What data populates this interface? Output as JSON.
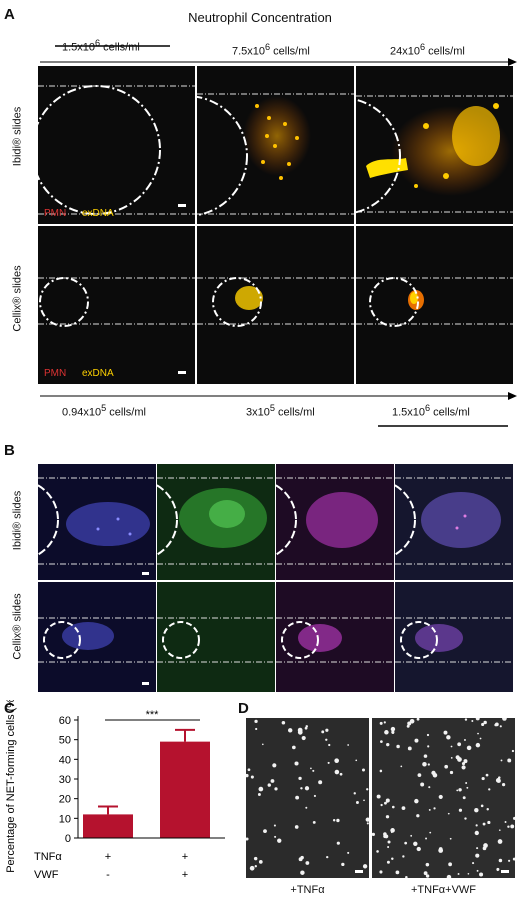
{
  "panelA": {
    "letter": "A",
    "title": "Neutrophil Concentration",
    "top_concs": [
      "1.5x10<sup>6</sup> cells/ml",
      "7.5x10<sup>6</sup> cells/ml",
      "24x10<sup>6</sup> cells/ml"
    ],
    "bottom_concs": [
      "0.94x10<sup>5</sup> cells/ml",
      "3x10<sup>5</sup> cells/ml",
      "1.5x10<sup>6</sup> cells/ml"
    ],
    "row1_label": "Ibidi® slides",
    "row2_label": "Cellix® slides",
    "legend_pmn": "PMN",
    "legend_exdna": "exDNA"
  },
  "panelB": {
    "letter": "B",
    "row1_label": "Ibidi® slides",
    "row2_label": "Cellix® slides"
  },
  "panelC": {
    "letter": "C",
    "ylabel": "Percentage of NET-forming cells (%)t",
    "significance": "***",
    "row1_name": "TNFα",
    "row2_name": "VWF",
    "row1_values": [
      "+",
      "+"
    ],
    "row2_values": [
      "-",
      "+"
    ],
    "chart_data": {
      "type": "bar",
      "categories": [
        "TNFα",
        "TNFα+VWF"
      ],
      "values": [
        12,
        49
      ],
      "errors": [
        4,
        6
      ],
      "ylim": [
        0,
        60
      ],
      "yticks": [
        "0",
        "10",
        "20",
        "30",
        "40",
        "50",
        "60"
      ],
      "bar_color": "#b5122e"
    }
  },
  "panelD": {
    "letter": "D",
    "left_caption": "+TNFα",
    "right_caption": "+TNFα+VWF"
  }
}
